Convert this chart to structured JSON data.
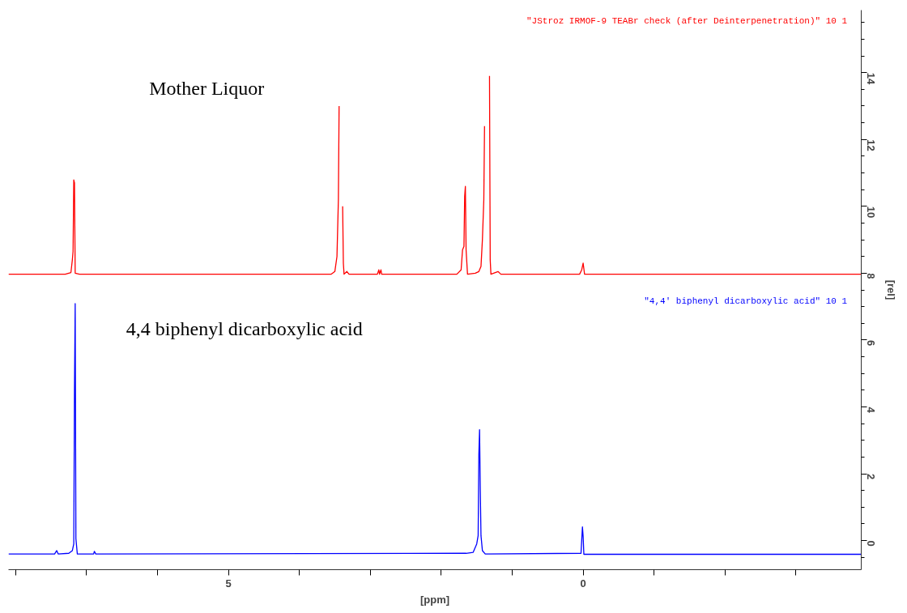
{
  "chart_data": {
    "type": "line",
    "xlabel": "[ppm]",
    "ylabel": "[rel]",
    "xlim": [
      8.1,
      -3.92
    ],
    "ylim": [
      -0.87,
      15.87
    ],
    "xticks": [
      {
        "value": 8,
        "label": null
      },
      {
        "value": 7,
        "label": null
      },
      {
        "value": 6,
        "label": null
      },
      5,
      {
        "value": 4,
        "label": null
      },
      {
        "value": 3,
        "label": null
      },
      {
        "value": 2,
        "label": null
      },
      {
        "value": 1,
        "label": null
      },
      0,
      {
        "value": -1,
        "label": null
      },
      {
        "value": -2,
        "label": null
      },
      {
        "value": -3,
        "label": null
      }
    ],
    "yticks": [
      {
        "value": -0.5,
        "label": null
      },
      0,
      {
        "value": 0.5,
        "label": null
      },
      {
        "value": 1,
        "label": null
      },
      {
        "value": 1.5,
        "label": null
      },
      2,
      {
        "value": 2.5,
        "label": null
      },
      {
        "value": 3,
        "label": null
      },
      {
        "value": 3.5,
        "label": null
      },
      4,
      {
        "value": 4.5,
        "label": null
      },
      {
        "value": 5,
        "label": null
      },
      {
        "value": 5.5,
        "label": null
      },
      6,
      {
        "value": 6.5,
        "label": null
      },
      {
        "value": 7,
        "label": null
      },
      {
        "value": 7.5,
        "label": null
      },
      8,
      {
        "value": 8.5,
        "label": null
      },
      {
        "value": 9,
        "label": null
      },
      {
        "value": 9.5,
        "label": null
      },
      10,
      {
        "value": 10.5,
        "label": null
      },
      {
        "value": 11,
        "label": null
      },
      {
        "value": 11.5,
        "label": null
      },
      12,
      {
        "value": 12.5,
        "label": null
      },
      {
        "value": 13,
        "label": null
      },
      {
        "value": 13.5,
        "label": null
      },
      14,
      {
        "value": 14.5,
        "label": null
      },
      {
        "value": 15,
        "label": null
      },
      {
        "value": 15.5,
        "label": null
      }
    ],
    "grid": false,
    "legend": false,
    "marker": "none",
    "line_style": "solid",
    "annotations": [
      "Mother Liquor",
      "4,4 biphenyl dicarboxylic acid"
    ],
    "series": [
      {
        "name": "\"JStroz IRMOF-9 TEABr check (after Deinterpenetration)\"  10  1",
        "color": "#ff0000",
        "x": [
          8.1,
          7.3,
          7.22,
          7.2,
          7.19,
          7.18,
          7.17,
          7.16,
          7.1,
          3.55,
          3.5,
          3.47,
          3.45,
          3.44,
          3.43,
          3.4,
          3.39,
          3.38,
          3.37,
          3.33,
          3.3,
          2.9,
          2.88,
          2.87,
          2.85,
          2.84,
          1.78,
          1.72,
          1.7,
          1.68,
          1.67,
          1.66,
          1.65,
          1.63,
          1.52,
          1.47,
          1.44,
          1.42,
          1.4,
          1.39,
          1.38,
          1.33,
          1.32,
          1.31,
          1.3,
          1.2,
          1.16,
          0.05,
          0.02,
          0.0,
          -0.02,
          -3.92
        ],
        "values": [
          7.97,
          7.97,
          8.02,
          8.4,
          8.65,
          10.79,
          10.7,
          8.0,
          7.97,
          7.97,
          8.05,
          8.5,
          10.2,
          13.0,
          null,
          null,
          10.0,
          8.3,
          7.97,
          8.05,
          7.97,
          7.97,
          8.1,
          7.97,
          8.1,
          7.97,
          7.97,
          8.1,
          8.7,
          8.8,
          10.3,
          10.6,
          8.7,
          7.97,
          8.0,
          8.05,
          8.2,
          9.0,
          10.2,
          12.4,
          null,
          null,
          13.9,
          8.4,
          7.97,
          8.05,
          7.97,
          7.97,
          8.1,
          8.3,
          7.97,
          7.97
        ]
      },
      {
        "name": "\"4,4' biphenyl dicarboxylic acid\"  10  1",
        "color": "#0000ff",
        "x": [
          8.1,
          7.45,
          7.42,
          7.4,
          7.25,
          7.2,
          7.18,
          7.17,
          7.16,
          7.15,
          7.13,
          6.9,
          6.89,
          6.87,
          1.65,
          1.55,
          1.5,
          1.48,
          1.47,
          1.46,
          1.45,
          1.44,
          1.42,
          1.38,
          0.03,
          0.01,
          0.0,
          -0.01,
          -3.92
        ],
        "values": [
          -0.4,
          -0.4,
          -0.3,
          -0.4,
          -0.38,
          -0.3,
          -0.1,
          4.53,
          7.09,
          0.06,
          -0.4,
          -0.4,
          -0.32,
          -0.4,
          -0.38,
          -0.35,
          -0.1,
          0.15,
          2.59,
          3.32,
          1.54,
          0.15,
          -0.3,
          -0.4,
          -0.38,
          0.41,
          0.12,
          -0.41,
          -0.41
        ]
      }
    ]
  }
}
